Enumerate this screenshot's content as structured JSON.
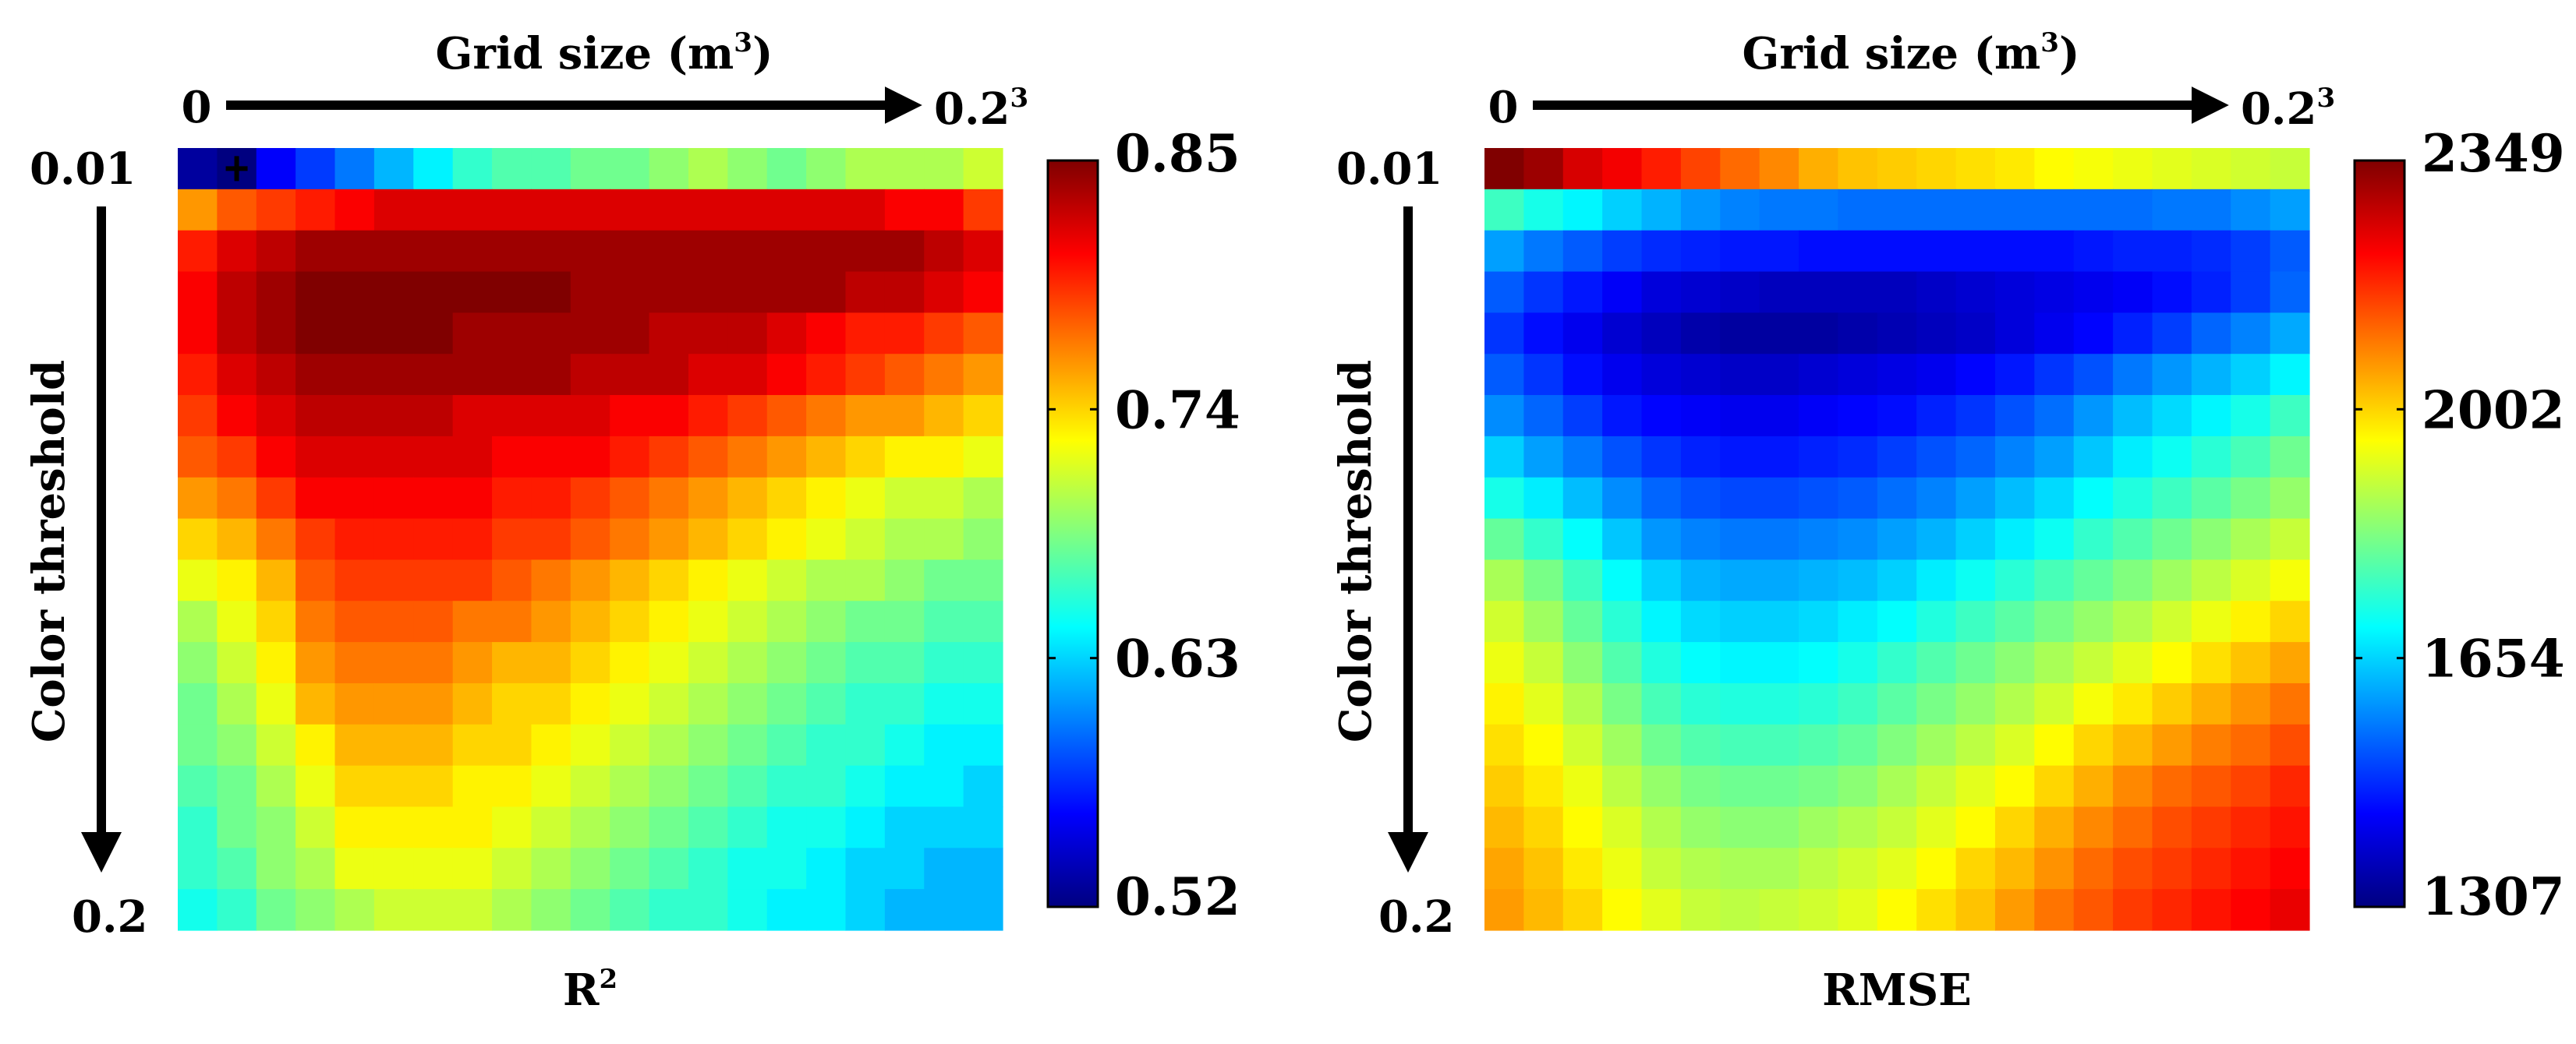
{
  "chart_data": [
    {
      "type": "heatmap",
      "metric": "R2",
      "rows": 19,
      "cols": 21,
      "title_main": "R",
      "title_sup": "2",
      "xlabel_main": "Grid size (m",
      "xlabel_sup": "3",
      "xlabel_close": ")",
      "ylabel": "Color threshold",
      "x_start_label": "0",
      "x_end_main": "0.2",
      "x_end_sup": "3",
      "y_start_label": "0.01",
      "y_end_label": "0.2",
      "colorbar_ticks": [
        "0.85",
        "0.74",
        "0.63",
        "0.52"
      ],
      "vmin": 0.52,
      "vmax": 0.85,
      "marker": {
        "row": 0,
        "col": 1,
        "symbol": "+"
      },
      "values": [
        [
          0.53,
          0.52,
          0.56,
          0.58,
          0.6,
          0.62,
          0.64,
          0.66,
          0.67,
          0.67,
          0.68,
          0.68,
          0.69,
          0.7,
          0.69,
          0.68,
          0.69,
          0.7,
          0.7,
          0.7,
          0.71
        ],
        [
          0.76,
          0.78,
          0.79,
          0.8,
          0.81,
          0.82,
          0.82,
          0.82,
          0.82,
          0.82,
          0.82,
          0.82,
          0.82,
          0.82,
          0.82,
          0.82,
          0.82,
          0.82,
          0.81,
          0.81,
          0.79
        ],
        [
          0.8,
          0.82,
          0.83,
          0.84,
          0.84,
          0.84,
          0.84,
          0.84,
          0.84,
          0.84,
          0.84,
          0.84,
          0.84,
          0.84,
          0.84,
          0.84,
          0.84,
          0.84,
          0.84,
          0.83,
          0.82
        ],
        [
          0.81,
          0.83,
          0.84,
          0.85,
          0.85,
          0.85,
          0.85,
          0.85,
          0.85,
          0.85,
          0.84,
          0.84,
          0.84,
          0.84,
          0.84,
          0.84,
          0.84,
          0.83,
          0.83,
          0.82,
          0.81
        ],
        [
          0.81,
          0.83,
          0.84,
          0.85,
          0.85,
          0.85,
          0.85,
          0.84,
          0.84,
          0.84,
          0.84,
          0.84,
          0.83,
          0.83,
          0.83,
          0.82,
          0.81,
          0.8,
          0.8,
          0.79,
          0.78
        ],
        [
          0.8,
          0.82,
          0.83,
          0.84,
          0.84,
          0.84,
          0.84,
          0.84,
          0.84,
          0.84,
          0.83,
          0.83,
          0.83,
          0.82,
          0.82,
          0.81,
          0.8,
          0.79,
          0.78,
          0.77,
          0.76
        ],
        [
          0.79,
          0.81,
          0.82,
          0.83,
          0.83,
          0.83,
          0.83,
          0.82,
          0.82,
          0.82,
          0.82,
          0.81,
          0.81,
          0.8,
          0.79,
          0.78,
          0.77,
          0.76,
          0.76,
          0.75,
          0.74
        ],
        [
          0.78,
          0.79,
          0.81,
          0.82,
          0.82,
          0.82,
          0.82,
          0.82,
          0.81,
          0.81,
          0.81,
          0.8,
          0.79,
          0.78,
          0.77,
          0.76,
          0.75,
          0.74,
          0.73,
          0.73,
          0.72
        ],
        [
          0.76,
          0.77,
          0.79,
          0.81,
          0.81,
          0.81,
          0.81,
          0.81,
          0.8,
          0.8,
          0.79,
          0.78,
          0.77,
          0.76,
          0.75,
          0.74,
          0.73,
          0.72,
          0.71,
          0.71,
          0.7
        ],
        [
          0.74,
          0.75,
          0.77,
          0.79,
          0.8,
          0.8,
          0.8,
          0.8,
          0.79,
          0.79,
          0.78,
          0.77,
          0.76,
          0.75,
          0.74,
          0.73,
          0.72,
          0.71,
          0.7,
          0.7,
          0.69
        ],
        [
          0.72,
          0.73,
          0.75,
          0.78,
          0.79,
          0.79,
          0.79,
          0.79,
          0.78,
          0.77,
          0.76,
          0.75,
          0.74,
          0.73,
          0.72,
          0.71,
          0.7,
          0.7,
          0.69,
          0.68,
          0.68
        ],
        [
          0.7,
          0.72,
          0.74,
          0.77,
          0.78,
          0.78,
          0.78,
          0.77,
          0.77,
          0.76,
          0.75,
          0.74,
          0.73,
          0.72,
          0.71,
          0.7,
          0.69,
          0.68,
          0.68,
          0.67,
          0.67
        ],
        [
          0.69,
          0.71,
          0.73,
          0.76,
          0.77,
          0.77,
          0.77,
          0.76,
          0.75,
          0.75,
          0.74,
          0.73,
          0.72,
          0.71,
          0.7,
          0.69,
          0.68,
          0.67,
          0.67,
          0.66,
          0.66
        ],
        [
          0.68,
          0.7,
          0.72,
          0.75,
          0.76,
          0.76,
          0.76,
          0.75,
          0.74,
          0.74,
          0.73,
          0.72,
          0.71,
          0.7,
          0.69,
          0.68,
          0.67,
          0.66,
          0.66,
          0.65,
          0.65
        ],
        [
          0.68,
          0.69,
          0.71,
          0.73,
          0.75,
          0.75,
          0.75,
          0.74,
          0.74,
          0.73,
          0.72,
          0.71,
          0.7,
          0.69,
          0.68,
          0.67,
          0.66,
          0.66,
          0.65,
          0.64,
          0.64
        ],
        [
          0.67,
          0.68,
          0.7,
          0.72,
          0.74,
          0.74,
          0.74,
          0.73,
          0.73,
          0.72,
          0.71,
          0.7,
          0.69,
          0.68,
          0.67,
          0.66,
          0.66,
          0.65,
          0.64,
          0.64,
          0.63
        ],
        [
          0.66,
          0.68,
          0.69,
          0.71,
          0.73,
          0.73,
          0.73,
          0.73,
          0.72,
          0.71,
          0.7,
          0.69,
          0.68,
          0.67,
          0.66,
          0.65,
          0.65,
          0.64,
          0.63,
          0.63,
          0.63
        ],
        [
          0.66,
          0.67,
          0.69,
          0.7,
          0.72,
          0.72,
          0.72,
          0.72,
          0.71,
          0.7,
          0.69,
          0.68,
          0.67,
          0.66,
          0.65,
          0.65,
          0.64,
          0.63,
          0.63,
          0.62,
          0.62
        ],
        [
          0.65,
          0.66,
          0.68,
          0.69,
          0.7,
          0.71,
          0.71,
          0.71,
          0.7,
          0.69,
          0.68,
          0.67,
          0.66,
          0.66,
          0.65,
          0.64,
          0.64,
          0.63,
          0.62,
          0.62,
          0.62
        ]
      ]
    },
    {
      "type": "heatmap",
      "metric": "RMSE",
      "rows": 19,
      "cols": 21,
      "title_main": "RMSE",
      "title_sup": "",
      "xlabel_main": "Grid size (m",
      "xlabel_sup": "3",
      "xlabel_close": ")",
      "ylabel": "Color threshold",
      "x_start_label": "0",
      "x_end_main": "0.2",
      "x_end_sup": "3",
      "y_start_label": "0.01",
      "y_end_label": "0.2",
      "colorbar_ticks": [
        "2349",
        "2002",
        "1654",
        "1307"
      ],
      "vmin": 1307,
      "vmax": 2349,
      "marker": null,
      "values": [
        [
          2349,
          2320,
          2260,
          2230,
          2190,
          2150,
          2110,
          2080,
          2040,
          2020,
          2010,
          2000,
          1990,
          1980,
          1960,
          1950,
          1940,
          1930,
          1920,
          1910,
          1900
        ],
        [
          1760,
          1720,
          1690,
          1650,
          1620,
          1590,
          1570,
          1560,
          1560,
          1550,
          1550,
          1550,
          1550,
          1550,
          1550,
          1550,
          1550,
          1560,
          1560,
          1580,
          1600
        ],
        [
          1600,
          1560,
          1530,
          1500,
          1480,
          1470,
          1460,
          1460,
          1450,
          1450,
          1450,
          1450,
          1450,
          1450,
          1450,
          1460,
          1470,
          1470,
          1480,
          1500,
          1530
        ],
        [
          1530,
          1490,
          1460,
          1430,
          1400,
          1390,
          1380,
          1370,
          1370,
          1370,
          1370,
          1380,
          1390,
          1400,
          1410,
          1420,
          1430,
          1450,
          1470,
          1500,
          1540
        ],
        [
          1490,
          1450,
          1420,
          1390,
          1370,
          1350,
          1340,
          1340,
          1340,
          1350,
          1360,
          1370,
          1380,
          1400,
          1420,
          1440,
          1470,
          1500,
          1540,
          1570,
          1610
        ],
        [
          1530,
          1490,
          1450,
          1420,
          1400,
          1390,
          1380,
          1380,
          1390,
          1400,
          1410,
          1420,
          1440,
          1460,
          1490,
          1520,
          1560,
          1590,
          1620,
          1650,
          1690
        ],
        [
          1580,
          1540,
          1500,
          1460,
          1440,
          1430,
          1420,
          1420,
          1430,
          1440,
          1450,
          1470,
          1490,
          1520,
          1550,
          1590,
          1630,
          1660,
          1690,
          1720,
          1760
        ],
        [
          1650,
          1600,
          1560,
          1520,
          1490,
          1470,
          1460,
          1460,
          1470,
          1480,
          1500,
          1520,
          1540,
          1570,
          1600,
          1640,
          1680,
          1710,
          1740,
          1770,
          1810
        ],
        [
          1720,
          1680,
          1630,
          1580,
          1540,
          1520,
          1510,
          1510,
          1520,
          1530,
          1550,
          1570,
          1600,
          1630,
          1660,
          1700,
          1730,
          1760,
          1790,
          1820,
          1850
        ],
        [
          1800,
          1750,
          1700,
          1640,
          1590,
          1570,
          1560,
          1560,
          1570,
          1580,
          1600,
          1620,
          1650,
          1680,
          1710,
          1750,
          1780,
          1810,
          1840,
          1870,
          1900
        ],
        [
          1870,
          1820,
          1760,
          1700,
          1650,
          1620,
          1610,
          1610,
          1620,
          1630,
          1650,
          1680,
          1710,
          1740,
          1770,
          1800,
          1830,
          1860,
          1890,
          1920,
          1950
        ],
        [
          1910,
          1860,
          1800,
          1740,
          1690,
          1660,
          1650,
          1650,
          1660,
          1680,
          1700,
          1730,
          1760,
          1790,
          1820,
          1850,
          1880,
          1910,
          1940,
          1970,
          2000
        ],
        [
          1940,
          1900,
          1840,
          1780,
          1730,
          1700,
          1690,
          1690,
          1700,
          1720,
          1750,
          1780,
          1810,
          1840,
          1870,
          1900,
          1930,
          1960,
          1990,
          2020,
          2050
        ],
        [
          1970,
          1930,
          1880,
          1820,
          1770,
          1740,
          1730,
          1730,
          1740,
          1760,
          1790,
          1820,
          1850,
          1880,
          1910,
          1950,
          1980,
          2010,
          2040,
          2070,
          2100
        ],
        [
          1990,
          1960,
          1910,
          1860,
          1810,
          1780,
          1770,
          1770,
          1780,
          1800,
          1830,
          1860,
          1890,
          1920,
          1960,
          2000,
          2030,
          2060,
          2090,
          2110,
          2140
        ],
        [
          2010,
          1980,
          1940,
          1890,
          1850,
          1820,
          1810,
          1810,
          1820,
          1840,
          1870,
          1900,
          1930,
          1960,
          2000,
          2040,
          2080,
          2110,
          2130,
          2150,
          2180
        ],
        [
          2030,
          2000,
          1960,
          1920,
          1880,
          1850,
          1840,
          1840,
          1860,
          1880,
          1900,
          1930,
          1960,
          2000,
          2040,
          2080,
          2110,
          2140,
          2160,
          2180,
          2200
        ],
        [
          2050,
          2020,
          1980,
          1940,
          1900,
          1880,
          1870,
          1870,
          1890,
          1910,
          1930,
          1960,
          2000,
          2030,
          2070,
          2110,
          2140,
          2160,
          2180,
          2200,
          2220
        ],
        [
          2060,
          2030,
          2000,
          1960,
          1930,
          1900,
          1890,
          1900,
          1910,
          1930,
          1960,
          1990,
          2020,
          2060,
          2100,
          2130,
          2160,
          2180,
          2200,
          2220,
          2240
        ]
      ]
    }
  ]
}
